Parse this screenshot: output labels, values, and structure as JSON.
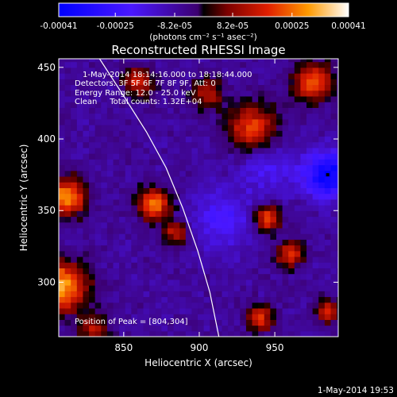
{
  "chart_data": {
    "type": "heatmap",
    "title": "Reconstructed RHESSI Image",
    "xlabel": "Heliocentric X (arcsec)",
    "ylabel": "Heliocentric Y (arcsec)",
    "xlim": [
      807,
      992
    ],
    "ylim": [
      262,
      456
    ],
    "x_ticks": [
      850,
      900,
      950
    ],
    "y_ticks": [
      300,
      350,
      400,
      450
    ],
    "colorbar": {
      "ticks": [
        -0.00041,
        -0.00025,
        -8.2e-05,
        8.2e-05,
        0.00025,
        0.00041
      ],
      "tick_labels": [
        "-0.00041",
        "-0.00025",
        "-8.2e-05",
        "8.2e-05",
        "0.00025",
        "0.00041"
      ],
      "unit_label": "(photons cm⁻² s⁻¹ asec⁻²)",
      "range": [
        -0.00041,
        0.00041
      ]
    },
    "annotations": {
      "time_range": "1-May-2014 18:14:16.000 to 18:18:44.000",
      "detectors": "Detectors: 3F 5F 6F 7F 8F 9F, Att: 0",
      "energy": "Energy Range: 12.0 - 25.0 keV",
      "clean": "Clean     Total counts: 1.32E+04",
      "peak": "Position of Peak = [804,304]"
    },
    "footer_timestamp": "1-May-2014 19:53",
    "limb_curve": [
      [
        834,
        456
      ],
      [
        850,
        430
      ],
      [
        865,
        405
      ],
      [
        878,
        380
      ],
      [
        889,
        352
      ],
      [
        899,
        322
      ],
      [
        907,
        293
      ],
      [
        913,
        262
      ]
    ],
    "marker": [
      985,
      375
    ],
    "bright_regions": [
      {
        "x": 808,
        "y": 297,
        "amp": 0.0004,
        "r": 17
      },
      {
        "x": 812,
        "y": 360,
        "amp": 0.00036,
        "r": 13
      },
      {
        "x": 870,
        "y": 355,
        "amp": 0.00032,
        "r": 11
      },
      {
        "x": 885,
        "y": 335,
        "amp": 0.00024,
        "r": 8
      },
      {
        "x": 935,
        "y": 408,
        "amp": 0.00028,
        "r": 16
      },
      {
        "x": 975,
        "y": 440,
        "amp": 0.0003,
        "r": 13
      },
      {
        "x": 860,
        "y": 440,
        "amp": 0.00024,
        "r": 10
      },
      {
        "x": 945,
        "y": 345,
        "amp": 0.0003,
        "r": 9
      },
      {
        "x": 960,
        "y": 320,
        "amp": 0.00026,
        "r": 9
      },
      {
        "x": 940,
        "y": 275,
        "amp": 0.00026,
        "r": 9
      },
      {
        "x": 985,
        "y": 280,
        "amp": 0.00024,
        "r": 8
      },
      {
        "x": 830,
        "y": 268,
        "amp": 0.00018,
        "r": 10
      },
      {
        "x": 905,
        "y": 432,
        "amp": 0.0002,
        "r": 10
      }
    ],
    "dark_regions": [
      {
        "x": 985,
        "y": 375,
        "amp": -0.00033,
        "r": 16
      },
      {
        "x": 915,
        "y": 345,
        "amp": -0.00014,
        "r": 22
      },
      {
        "x": 945,
        "y": 380,
        "amp": -0.00012,
        "r": 18
      }
    ]
  }
}
